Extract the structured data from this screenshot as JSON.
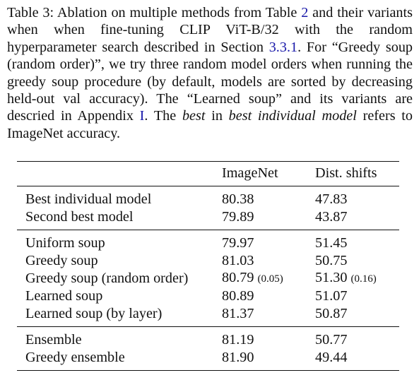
{
  "caption": {
    "p1": "Table 3: Ablation on multiple methods from Table ",
    "ref_table": "2",
    "p2": " and their variants when when fine-tuning CLIP ViT-B/32 with the random hyperparameter search described in Section ",
    "ref_section": "3.3.1",
    "p3": ". For “Greedy soup (random order)”, we try three random model orders when running the greedy soup procedure (by default, models are sorted by decreasing held-out val accuracy). The “Learned soup” and its variants are descried in Appendix ",
    "ref_appendix": "I",
    "p4": ". The ",
    "em1": "best",
    "p5": " in ",
    "em2": "best individual model",
    "p6": " refers to ImageNet accuracy."
  },
  "table": {
    "headers": [
      "",
      "ImageNet",
      "Dist. shifts"
    ],
    "groups": [
      [
        {
          "method": "Best individual model",
          "imagenet": "80.38",
          "imagenet_std": "",
          "shifts": "47.83",
          "shifts_std": ""
        },
        {
          "method": "Second best model",
          "imagenet": "79.89",
          "imagenet_std": "",
          "shifts": "43.87",
          "shifts_std": ""
        }
      ],
      [
        {
          "method": "Uniform soup",
          "imagenet": "79.97",
          "imagenet_std": "",
          "shifts": "51.45",
          "shifts_std": ""
        },
        {
          "method": "Greedy soup",
          "imagenet": "81.03",
          "imagenet_std": "",
          "shifts": "50.75",
          "shifts_std": ""
        },
        {
          "method": "Greedy soup (random order)",
          "imagenet": "80.79",
          "imagenet_std": "(0.05)",
          "shifts": "51.30",
          "shifts_std": "(0.16)"
        },
        {
          "method": "Learned soup",
          "imagenet": "80.89",
          "imagenet_std": "",
          "shifts": "51.07",
          "shifts_std": ""
        },
        {
          "method": "Learned soup (by layer)",
          "imagenet": "81.37",
          "imagenet_std": "",
          "shifts": "50.87",
          "shifts_std": ""
        }
      ],
      [
        {
          "method": "Ensemble",
          "imagenet": "81.19",
          "imagenet_std": "",
          "shifts": "50.77",
          "shifts_std": ""
        },
        {
          "method": "Greedy ensemble",
          "imagenet": "81.90",
          "imagenet_std": "",
          "shifts": "49.44",
          "shifts_std": ""
        }
      ]
    ]
  }
}
